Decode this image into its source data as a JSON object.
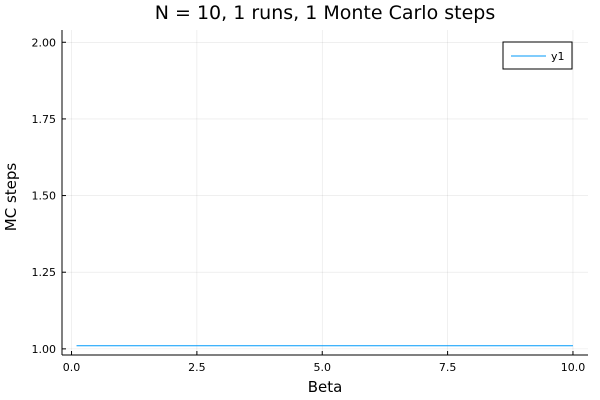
{
  "chart_data": {
    "type": "line",
    "title": "N = 10, 1 runs, 1  Monte Carlo steps",
    "xlabel": "Beta",
    "ylabel": "MC steps",
    "xlim": [
      -0.19,
      10.3
    ],
    "ylim": [
      0.98,
      2.04
    ],
    "xticks": [
      0.0,
      2.5,
      5.0,
      7.5,
      10.0
    ],
    "xtick_labels": [
      "0.0",
      "2.5",
      "5.0",
      "7.5",
      "10.0"
    ],
    "yticks": [
      1.0,
      1.25,
      1.5,
      1.75,
      2.0
    ],
    "ytick_labels": [
      "1.00",
      "1.25",
      "1.50",
      "1.75",
      "2.00"
    ],
    "grid": true,
    "legend_position": "top-right",
    "series": [
      {
        "name": "y1",
        "color": "#009AFA",
        "x": [
          0.1,
          10.0
        ],
        "y": [
          1.01,
          1.01
        ]
      }
    ]
  }
}
